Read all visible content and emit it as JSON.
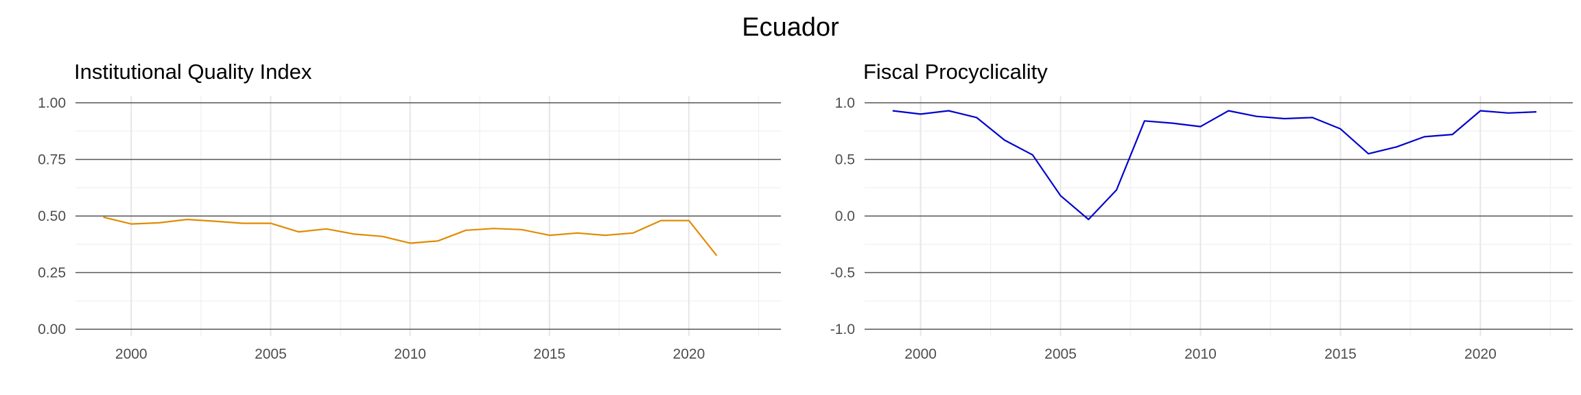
{
  "figure": {
    "title": "Ecuador"
  },
  "chart_data": [
    {
      "type": "line",
      "title": "Institutional Quality Index",
      "xlabel": "",
      "ylabel": "",
      "xlim": [
        1998,
        2023.3
      ],
      "ylim": [
        -0.03,
        1.03
      ],
      "x_ticks": [
        2000,
        2005,
        2010,
        2015,
        2020
      ],
      "x_tick_labels": [
        "2000",
        "2005",
        "2010",
        "2015",
        "2020"
      ],
      "y_ticks": [
        0,
        0.25,
        0.5,
        0.75,
        1.0
      ],
      "y_tick_labels": [
        "0.00",
        "0.25",
        "0.50",
        "0.75",
        "1.00"
      ],
      "grid": true,
      "legend": "none",
      "series": [
        {
          "color": "#E08B00",
          "x": [
            1999,
            2000,
            2001,
            2002,
            2003,
            2004,
            2005,
            2006,
            2007,
            2008,
            2009,
            2010,
            2011,
            2012,
            2013,
            2014,
            2015,
            2016,
            2017,
            2018,
            2019,
            2020,
            2021
          ],
          "y": [
            0.495,
            0.465,
            0.47,
            0.485,
            0.477,
            0.468,
            0.468,
            0.43,
            0.443,
            0.42,
            0.41,
            0.38,
            0.39,
            0.437,
            0.445,
            0.44,
            0.415,
            0.425,
            0.415,
            0.425,
            0.48,
            0.48,
            0.325
          ]
        }
      ]
    },
    {
      "type": "line",
      "title": "Fiscal Procyclicality",
      "xlabel": "",
      "ylabel": "",
      "xlim": [
        1998,
        2023.3
      ],
      "ylim": [
        -1.06,
        1.06
      ],
      "x_ticks": [
        2000,
        2005,
        2010,
        2015,
        2020
      ],
      "x_tick_labels": [
        "2000",
        "2005",
        "2010",
        "2015",
        "2020"
      ],
      "y_ticks": [
        -1.0,
        -0.5,
        0,
        0.5,
        1.0
      ],
      "y_tick_labels": [
        "-1.0",
        "-0.5",
        "0.0",
        "0.5",
        "1.0"
      ],
      "grid": true,
      "legend": "none",
      "series": [
        {
          "color": "#0000CD",
          "x": [
            1999,
            2000,
            2001,
            2002,
            2003,
            2004,
            2005,
            2006,
            2007,
            2008,
            2009,
            2010,
            2011,
            2012,
            2013,
            2014,
            2015,
            2016,
            2017,
            2018,
            2019,
            2020,
            2021,
            2022
          ],
          "y": [
            0.93,
            0.9,
            0.93,
            0.87,
            0.67,
            0.54,
            0.18,
            -0.03,
            0.23,
            0.84,
            0.82,
            0.79,
            0.93,
            0.88,
            0.86,
            0.87,
            0.77,
            0.55,
            0.61,
            0.7,
            0.72,
            0.93,
            0.91,
            0.92
          ]
        }
      ]
    }
  ]
}
